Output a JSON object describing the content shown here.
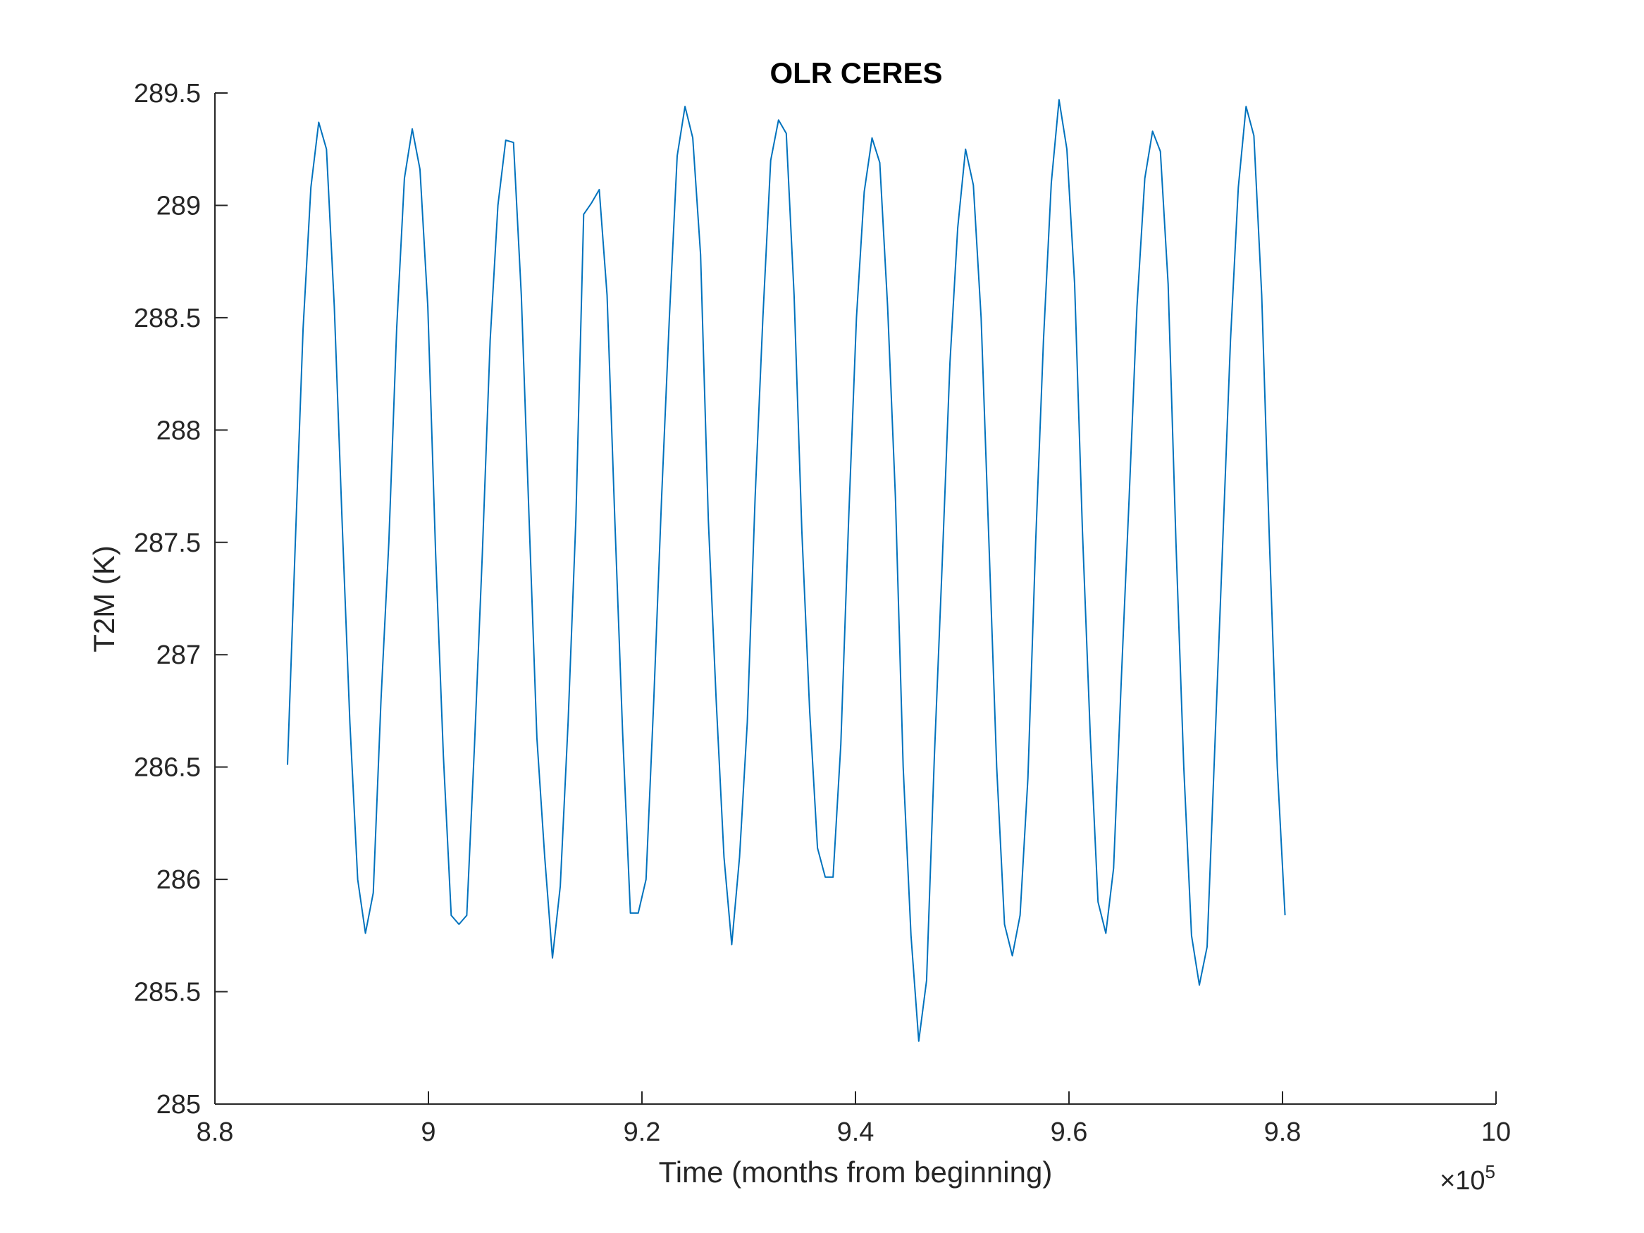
{
  "chart_data": {
    "type": "line",
    "title": "OLR CERES",
    "xlabel": "Time (months from beginning)",
    "ylabel": "T2M (K)",
    "x_exponent_label": {
      "times": "×10",
      "power": "5"
    },
    "xlim": [
      880000,
      1000000
    ],
    "ylim": [
      285,
      289.5
    ],
    "x_ticks": [
      880000,
      900000,
      920000,
      940000,
      960000,
      980000,
      1000000
    ],
    "x_tick_labels": [
      "8.8",
      "9",
      "9.2",
      "9.4",
      "9.6",
      "9.8",
      "10"
    ],
    "y_ticks": [
      285,
      285.5,
      286,
      286.5,
      287,
      287.5,
      288,
      288.5,
      289,
      289.5
    ],
    "y_tick_labels": [
      "285",
      "285.5",
      "286",
      "286.5",
      "287",
      "287.5",
      "288",
      "288.5",
      "289",
      "289.5"
    ],
    "grid": false,
    "series_color": "#0072BD",
    "x_start": 886800,
    "x_step": 730,
    "series": [
      {
        "values": [
          286.51,
          287.5,
          288.45,
          289.08,
          289.37,
          289.25,
          288.55,
          287.6,
          286.7,
          286.0,
          285.76,
          285.94,
          286.8,
          287.5,
          288.45,
          289.12,
          289.34,
          289.16,
          288.55,
          287.45,
          286.55,
          285.84,
          285.8,
          285.84,
          286.6,
          287.45,
          288.4,
          289.0,
          289.29,
          289.28,
          288.6,
          287.6,
          286.63,
          286.1,
          285.65,
          285.97,
          286.7,
          287.6,
          288.96,
          289.01,
          289.07,
          288.6,
          287.6,
          286.65,
          285.85,
          285.85,
          286.0,
          286.8,
          287.7,
          288.5,
          289.22,
          289.44,
          289.3,
          288.78,
          287.6,
          286.8,
          286.1,
          285.71,
          286.1,
          286.7,
          287.7,
          288.5,
          289.2,
          289.38,
          289.32,
          288.6,
          287.55,
          286.75,
          286.14,
          286.01,
          286.01,
          286.6,
          287.6,
          288.5,
          289.06,
          289.3,
          289.19,
          288.55,
          287.7,
          286.5,
          285.75,
          285.28,
          285.55,
          286.55,
          287.4,
          288.3,
          288.9,
          289.25,
          289.09,
          288.5,
          287.5,
          286.5,
          285.8,
          285.66,
          285.84,
          286.45,
          287.5,
          288.4,
          289.1,
          289.47,
          289.25,
          288.65,
          287.55,
          286.65,
          285.9,
          285.76,
          286.05,
          286.9,
          287.7,
          288.55,
          289.12,
          289.33,
          289.24,
          288.65,
          287.5,
          286.5,
          285.75,
          285.53,
          285.7,
          286.6,
          287.5,
          288.4,
          289.08,
          289.44,
          289.31,
          288.6,
          287.5,
          286.5,
          285.84
        ]
      }
    ]
  }
}
